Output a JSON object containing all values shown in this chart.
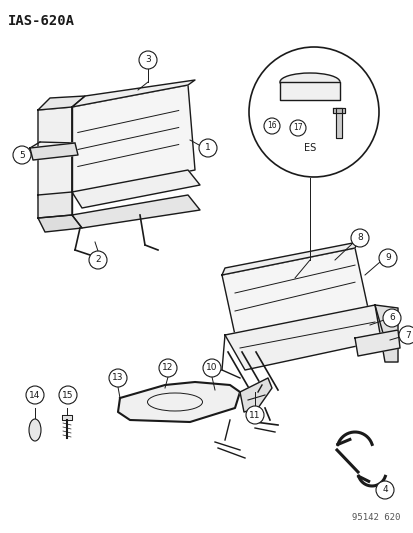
{
  "title": "IAS-620A",
  "part_number": "95142 620",
  "bg_color": "#ffffff",
  "line_color": "#1a1a1a",
  "text_color": "#1a1a1a",
  "circle_bg": "#ffffff",
  "figsize": [
    4.14,
    5.33
  ],
  "dpi": 100
}
